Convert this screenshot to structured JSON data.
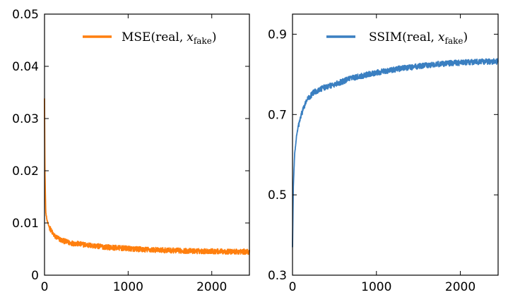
{
  "chart_data": [
    {
      "type": "line",
      "title": "",
      "xlabel": "",
      "ylabel": "",
      "xlim": [
        0,
        2450
      ],
      "ylim": [
        0,
        0.05
      ],
      "xticks": [
        0,
        1000,
        2000
      ],
      "xtick_labels": [
        "0",
        "1000",
        "2000"
      ],
      "yticks": [
        0,
        0.01,
        0.02,
        0.03,
        0.04,
        0.05
      ],
      "ytick_labels": [
        "0",
        "0.01",
        "0.02",
        "0.03",
        "0.04",
        "0.05"
      ],
      "legend_position": "top-right",
      "series": [
        {
          "name": "MSE(real, x_fake)",
          "legend_label_main": "MSE(real,",
          "legend_label_var": "x",
          "legend_label_sub": "fake",
          "legend_label_close": ")",
          "color": "#ff7f0e",
          "noise": 0.0005,
          "x": [
            0,
            5,
            15,
            30,
            50,
            80,
            120,
            200,
            300,
            400,
            600,
            800,
            1000,
            1200,
            1400,
            1600,
            1800,
            2000,
            2200,
            2450
          ],
          "values": [
            0.034,
            0.02,
            0.012,
            0.0105,
            0.0095,
            0.0085,
            0.0075,
            0.0067,
            0.0062,
            0.006,
            0.0056,
            0.0053,
            0.0051,
            0.0049,
            0.0048,
            0.0047,
            0.0046,
            0.0046,
            0.0045,
            0.0045
          ]
        }
      ]
    },
    {
      "type": "line",
      "title": "",
      "xlabel": "",
      "ylabel": "",
      "xlim": [
        0,
        2450
      ],
      "ylim": [
        0.3,
        0.95
      ],
      "xticks": [
        0,
        1000,
        2000
      ],
      "xtick_labels": [
        "0",
        "1000",
        "2000"
      ],
      "yticks": [
        0.3,
        0.5,
        0.7,
        0.9
      ],
      "ytick_labels": [
        "0.3",
        "0.5",
        "0.7",
        "0.9"
      ],
      "legend_position": "top-right",
      "series": [
        {
          "name": "SSIM(real, x_fake)",
          "legend_label_main": "SSIM(real,",
          "legend_label_var": "x",
          "legend_label_sub": "fake",
          "legend_label_close": ")",
          "color": "#3a7fc1",
          "noise": 0.007,
          "x": [
            0,
            10,
            25,
            50,
            80,
            120,
            170,
            250,
            350,
            500,
            700,
            900,
            1100,
            1300,
            1500,
            1700,
            1900,
            2100,
            2300,
            2450
          ],
          "values": [
            0.37,
            0.52,
            0.6,
            0.65,
            0.68,
            0.71,
            0.735,
            0.755,
            0.765,
            0.775,
            0.79,
            0.8,
            0.808,
            0.815,
            0.82,
            0.825,
            0.828,
            0.83,
            0.832,
            0.832
          ]
        }
      ]
    }
  ]
}
